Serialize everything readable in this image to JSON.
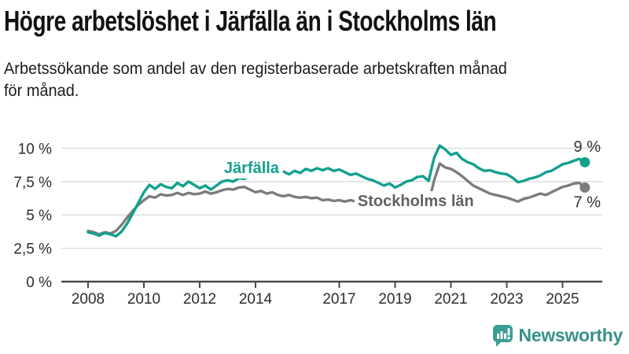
{
  "title": "Högre arbetslöshet i Järfälla än i Stockholms län",
  "subtitle": "Arbetssökande som andel av den registerbaserade arbetskraften månad\nför månad.",
  "logo": {
    "text": "Newsworthy",
    "icon": "bar-chart-speech-bubble-icon",
    "icon_color": "#3b9d95",
    "text_color": "#37918a"
  },
  "chart_data": {
    "type": "line",
    "unit": "%",
    "grid": "horizontal",
    "ylim": [
      0,
      10.8
    ],
    "xlim": [
      2007.9,
      2026.3
    ],
    "y_ticks": [
      {
        "value": 0,
        "label": "0 %"
      },
      {
        "value": 2.5,
        "label": "2,5 %"
      },
      {
        "value": 5,
        "label": "5 %"
      },
      {
        "value": 7.5,
        "label": "7,5 %"
      },
      {
        "value": 10,
        "label": "10 %"
      }
    ],
    "x_ticks": [
      {
        "value": 2008,
        "label": "2008"
      },
      {
        "value": 2010,
        "label": "2010"
      },
      {
        "value": 2012,
        "label": "2012"
      },
      {
        "value": 2014,
        "label": "2014"
      },
      {
        "value": 2017,
        "label": "2017"
      },
      {
        "value": 2019,
        "label": "2019"
      },
      {
        "value": 2021,
        "label": "2021"
      },
      {
        "value": 2023,
        "label": "2023"
      },
      {
        "value": 2025,
        "label": "2025"
      }
    ],
    "series": [
      {
        "name": "Stockholms län",
        "color": "#7c7c7c",
        "label_color": "#616161",
        "end_label": "7 %",
        "label_x": 2017.66,
        "label_y": 5.66,
        "x0": 2008.0,
        "dx": 0.2,
        "values": [
          3.8,
          3.7,
          3.55,
          3.7,
          3.6,
          3.8,
          4.25,
          4.8,
          5.3,
          5.75,
          6.1,
          6.4,
          6.3,
          6.55,
          6.45,
          6.5,
          6.65,
          6.5,
          6.65,
          6.55,
          6.6,
          6.75,
          6.6,
          6.7,
          6.85,
          6.95,
          6.9,
          7.05,
          7.1,
          6.9,
          6.7,
          6.8,
          6.6,
          6.7,
          6.5,
          6.4,
          6.5,
          6.35,
          6.3,
          6.35,
          6.25,
          6.3,
          6.1,
          6.15,
          6.05,
          6.1,
          6.0,
          6.1,
          6.0,
          5.95,
          5.9,
          5.8,
          5.75,
          5.7,
          5.65,
          5.6,
          5.65,
          5.7,
          5.75,
          5.8,
          5.7,
          5.9,
          7.6,
          8.85,
          8.55,
          8.45,
          8.2,
          7.9,
          7.55,
          7.2,
          7.0,
          6.8,
          6.6,
          6.5,
          6.4,
          6.3,
          6.15,
          6.0,
          6.2,
          6.3,
          6.45,
          6.6,
          6.5,
          6.7,
          6.9,
          7.1,
          7.2,
          7.35,
          7.4,
          7.05
        ]
      },
      {
        "name": "Järfälla",
        "color": "#12a08f",
        "end_label": "9 %",
        "label_x": 2012.87,
        "label_y": 8.14,
        "x0": 2008.0,
        "dx": 0.2,
        "values": [
          3.7,
          3.6,
          3.45,
          3.65,
          3.55,
          3.4,
          3.75,
          4.35,
          5.1,
          5.9,
          6.7,
          7.25,
          6.95,
          7.3,
          7.1,
          7.0,
          7.4,
          7.15,
          7.5,
          7.25,
          7.0,
          7.2,
          6.9,
          7.2,
          7.5,
          7.6,
          7.5,
          7.75,
          7.7,
          7.9,
          8.0,
          7.9,
          8.1,
          8.0,
          8.2,
          8.25,
          8.05,
          8.3,
          8.15,
          8.45,
          8.3,
          8.5,
          8.35,
          8.5,
          8.3,
          8.4,
          8.2,
          8.0,
          8.1,
          7.9,
          7.7,
          7.6,
          7.4,
          7.2,
          7.35,
          7.05,
          7.25,
          7.5,
          7.6,
          7.85,
          7.9,
          7.55,
          9.3,
          10.2,
          9.9,
          9.5,
          9.65,
          9.2,
          8.95,
          8.8,
          8.5,
          8.3,
          8.35,
          8.2,
          8.1,
          8.05,
          7.8,
          7.45,
          7.55,
          7.7,
          7.8,
          7.95,
          8.2,
          8.3,
          8.55,
          8.8,
          8.9,
          9.05,
          9.2,
          8.95
        ]
      }
    ]
  }
}
